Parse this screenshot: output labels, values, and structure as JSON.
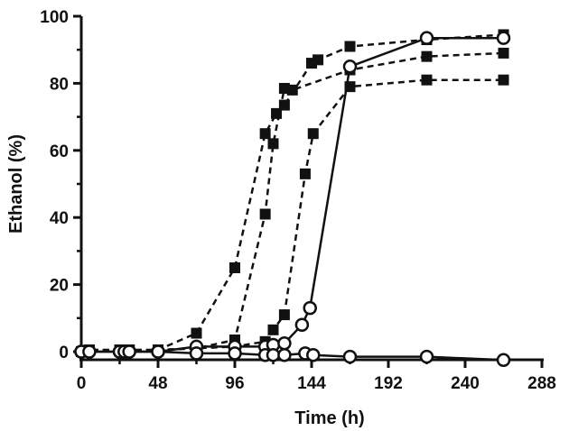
{
  "chart_data": {
    "type": "line",
    "title": "",
    "xlabel": "Time (h)",
    "ylabel": "Ethanol (%)",
    "xlim": [
      0,
      288
    ],
    "ylim": [
      0,
      100
    ],
    "x_ticks": [
      0,
      48,
      96,
      144,
      192,
      240,
      288
    ],
    "y_ticks": [
      0,
      20,
      40,
      60,
      80,
      100
    ],
    "grid": false,
    "legend": "none",
    "colors": {
      "ink": "#111111",
      "marker_fill_open": "#ffffff"
    },
    "series": [
      {
        "marker": "filled-square",
        "line": "dashed",
        "points": [
          [
            0,
            0
          ],
          [
            5,
            0.5
          ],
          [
            24,
            0.5
          ],
          [
            30,
            0.5
          ],
          [
            48,
            0.5
          ],
          [
            72,
            5.5
          ],
          [
            96,
            25
          ],
          [
            115,
            65
          ],
          [
            122,
            71
          ],
          [
            127,
            73.5
          ],
          [
            144,
            86
          ],
          [
            148,
            87
          ],
          [
            168,
            91
          ],
          [
            216,
            93
          ],
          [
            264,
            94.5
          ]
        ]
      },
      {
        "marker": "filled-square",
        "line": "dashed",
        "points": [
          [
            0,
            0
          ],
          [
            5,
            0.5
          ],
          [
            24,
            0.5
          ],
          [
            30,
            0.5
          ],
          [
            48,
            0.5
          ],
          [
            72,
            1
          ],
          [
            96,
            3.5
          ],
          [
            115,
            41
          ],
          [
            120,
            62
          ],
          [
            127,
            78.5
          ],
          [
            132,
            78
          ],
          [
            168,
            84
          ],
          [
            216,
            88
          ],
          [
            264,
            89
          ]
        ]
      },
      {
        "marker": "filled-square",
        "line": "dashed",
        "points": [
          [
            0,
            0
          ],
          [
            5,
            0.5
          ],
          [
            24,
            0.5
          ],
          [
            30,
            0.5
          ],
          [
            48,
            0.5
          ],
          [
            72,
            1
          ],
          [
            96,
            1.5
          ],
          [
            115,
            3
          ],
          [
            120,
            6.5
          ],
          [
            127,
            11
          ],
          [
            140,
            53
          ],
          [
            145,
            65
          ],
          [
            168,
            79
          ],
          [
            216,
            81
          ],
          [
            264,
            81
          ]
        ]
      },
      {
        "marker": "open-circle",
        "line": "solid",
        "points": [
          [
            0,
            0
          ],
          [
            5,
            0
          ],
          [
            24,
            0
          ],
          [
            27,
            0
          ],
          [
            30,
            0
          ],
          [
            48,
            0
          ],
          [
            72,
            1.5
          ],
          [
            96,
            1.5
          ],
          [
            115,
            1.5
          ],
          [
            120,
            2
          ],
          [
            127,
            2.5
          ],
          [
            138,
            8
          ],
          [
            143,
            13
          ],
          [
            168,
            85
          ],
          [
            216,
            93.5
          ],
          [
            264,
            93.5
          ]
        ]
      },
      {
        "marker": "open-circle",
        "line": "solid",
        "points": [
          [
            0,
            0
          ],
          [
            5,
            0
          ],
          [
            24,
            0
          ],
          [
            27,
            0
          ],
          [
            30,
            0
          ],
          [
            48,
            0
          ],
          [
            72,
            -0.5
          ],
          [
            96,
            -0.5
          ],
          [
            115,
            -1
          ],
          [
            120,
            -1
          ],
          [
            127,
            -1
          ],
          [
            140,
            -0.5
          ],
          [
            145,
            -1
          ],
          [
            168,
            -1.5
          ],
          [
            216,
            -1.5
          ],
          [
            264,
            -2.5
          ]
        ]
      }
    ]
  }
}
